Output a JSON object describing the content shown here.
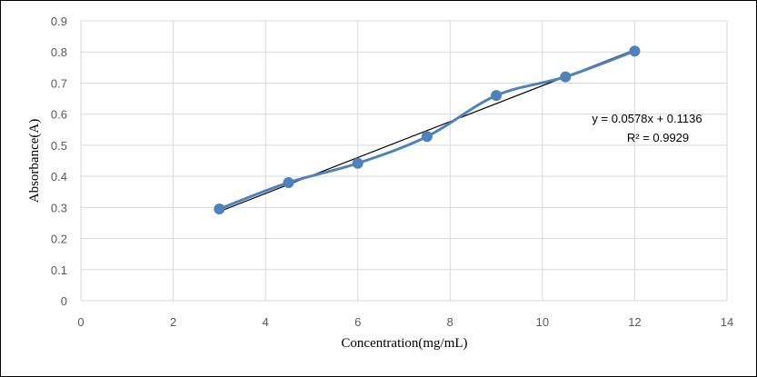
{
  "chart_data": {
    "type": "scatter",
    "title": "",
    "xlabel": "Concentration(mg/mL)",
    "ylabel": "Absorbance(A)",
    "xlim": [
      0,
      14
    ],
    "ylim": [
      0,
      0.9
    ],
    "x_ticks": [
      0,
      2,
      4,
      6,
      8,
      10,
      12,
      14
    ],
    "y_ticks": [
      "0",
      "0.1",
      "0.2",
      "0.3",
      "0.4",
      "0.5",
      "0.6",
      "0.7",
      "0.8",
      "0.9"
    ],
    "grid": true,
    "legend": "none",
    "series": [
      {
        "x": [
          3,
          4.5,
          6,
          7.5,
          9,
          10.5,
          12
        ],
        "y": [
          0.295,
          0.38,
          0.442,
          0.528,
          0.66,
          0.72,
          0.803
        ],
        "color": "#4f81bd",
        "smooth_line": true
      }
    ],
    "trendline": {
      "slope": 0.0578,
      "intercept": 0.1136,
      "x_range": [
        3,
        12
      ],
      "color": "#000000"
    },
    "annotations": {
      "equation": "y = 0.0578x + 0.1136",
      "r_squared": "R² = 0.9929"
    }
  }
}
